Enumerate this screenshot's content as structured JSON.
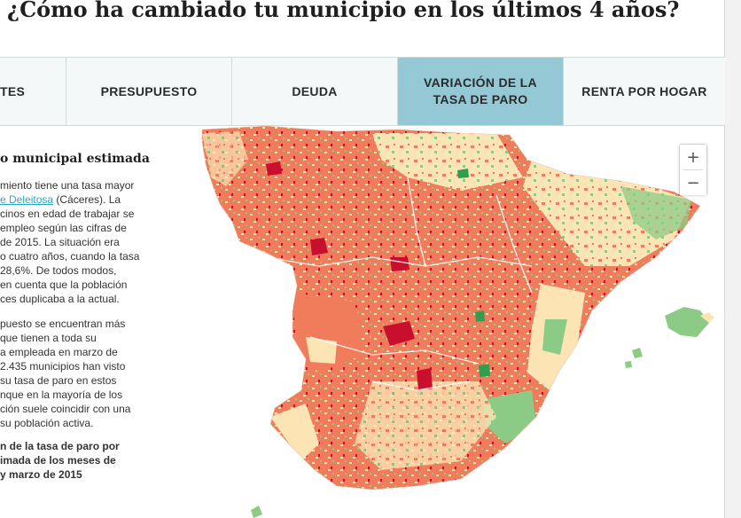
{
  "page": {
    "title": "¿Cómo ha cambiado tu municipio en los últimos 4 años?"
  },
  "tabs": [
    {
      "label": "TES",
      "active": false
    },
    {
      "label": "PRESUPUESTO",
      "active": false
    },
    {
      "label": "DEUDA",
      "active": false
    },
    {
      "label": "VARIACIÓN DE LA TASA DE PARO",
      "active": true
    },
    {
      "label": "RENTA POR HOGAR",
      "active": false
    }
  ],
  "panel": {
    "heading": "o municipal estimada",
    "p1": {
      "l1": "miento tiene una tasa mayor",
      "link": "e Deleitosa",
      "l2_rest": " (Cáceres). La",
      "l3": "cinos en edad de trabajar se",
      "l4": "empleo según las cifras de",
      "l5": "de 2015. La situación era",
      "l6": "o cuatro años, cuando la tasa",
      "l7": "28,6%. De todos modos,",
      "l8": "en cuenta que la población",
      "l9": "ces duplicaba a la actual."
    },
    "p2": [
      "puesto se encuentran más",
      "que tienen a toda su",
      "a empleada en marzo de",
      "2.435 municipios han visto",
      "su tasa de paro en estos",
      "nque en la mayoría de los",
      "ción suele coincidir con una",
      "su población activa."
    ],
    "caption": [
      "n de la tasa de paro por",
      "imada de los meses de",
      "y marzo de 2015"
    ]
  },
  "map": {
    "description_colors": {
      "strong_increase": "#c8102e",
      "increase": "#f07c5c",
      "slight": "#fde4b4",
      "decrease": "#8ccb85",
      "strong_decrease": "#2e9e4f",
      "border": "#ffffff"
    }
  },
  "zoom": {
    "in": "+",
    "out": "−"
  }
}
